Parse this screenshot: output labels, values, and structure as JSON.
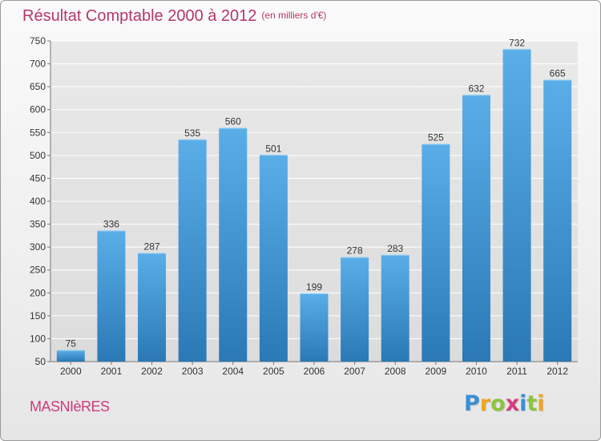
{
  "header": {
    "title": "Résultat Comptable 2000 à 2012",
    "subtitle": "(en milliers d'€)"
  },
  "footer": {
    "commune": "MASNIèRES",
    "logo": {
      "letters": [
        "P",
        "r",
        "o",
        "x",
        "i",
        "t",
        "i"
      ],
      "colors": [
        "#3b8fd6",
        "#f2a41c",
        "#8cc43f",
        "#d93a7c",
        "#3b8fd6",
        "#8cc43f",
        "#f2a41c"
      ]
    }
  },
  "colors": {
    "title": "#b5376a",
    "bar_top": "#5aaee8",
    "bar_bottom": "#2a79b6",
    "grid": "#ffffff",
    "axis_text": "#333333"
  },
  "chart_data": {
    "type": "bar",
    "categories": [
      "2000",
      "2001",
      "2002",
      "2003",
      "2004",
      "2005",
      "2006",
      "2007",
      "2008",
      "2009",
      "2010",
      "2011",
      "2012"
    ],
    "values": [
      75,
      336,
      287,
      535,
      560,
      501,
      199,
      278,
      283,
      525,
      632,
      732,
      665
    ],
    "ylim": [
      50,
      750
    ],
    "yticks": [
      50,
      100,
      150,
      200,
      250,
      300,
      350,
      400,
      450,
      500,
      550,
      600,
      650,
      700,
      750
    ],
    "grid": true,
    "data_labels": true
  }
}
